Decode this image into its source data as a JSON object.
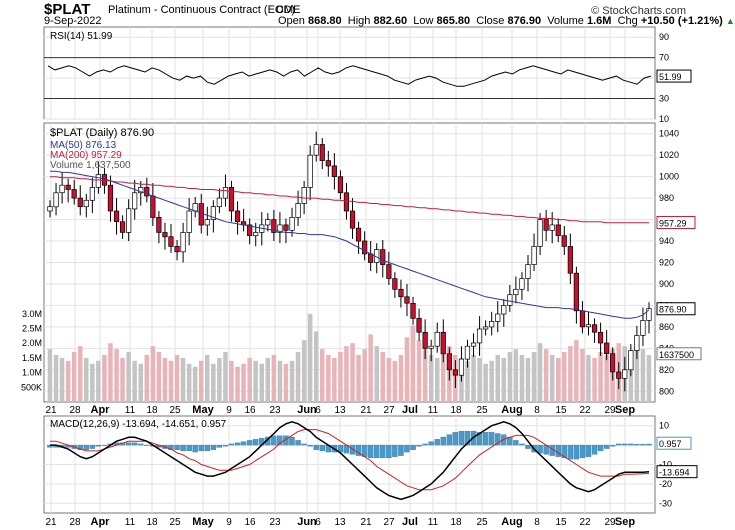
{
  "header": {
    "symbol": "$PLAT",
    "name": "Platinum - Continuous Contract (EOD)",
    "exchange": "CME",
    "date": "9-Sep-2022",
    "open_label": "Open",
    "open": "868.80",
    "high_label": "High",
    "high": "882.60",
    "low_label": "Low",
    "low": "865.80",
    "close_label": "Close",
    "close": "876.90",
    "volume_label": "Volume",
    "volume": "1.6M",
    "chg_label": "Chg",
    "chg": "+10.50 (+1.21%)",
    "chg_icon": "up-triangle-icon",
    "chg_color": "#1a8a1a",
    "copyright": "© StockCharts.com"
  },
  "chart_data": [
    {
      "type": "line",
      "panel": "rsi",
      "legend": "RSI(14) 51.99",
      "ylim": [
        10,
        100
      ],
      "y_ticks": [
        "90",
        "70",
        "50",
        "30",
        "10"
      ],
      "levels": [
        70,
        30
      ],
      "last_value": "51.99",
      "values": [
        62,
        58,
        60,
        62,
        60,
        56,
        52,
        56,
        58,
        56,
        60,
        62,
        60,
        58,
        56,
        60,
        58,
        54,
        50,
        48,
        52,
        50,
        52,
        46,
        44,
        48,
        52,
        54,
        56,
        52,
        54,
        56,
        58,
        56,
        52,
        56,
        58,
        52,
        56,
        60,
        56,
        54,
        56,
        60,
        62,
        60,
        58,
        56,
        54,
        52,
        48,
        46,
        44,
        48,
        50,
        52,
        50,
        46,
        44,
        42,
        42,
        44,
        46,
        48,
        52,
        54,
        56,
        54,
        58,
        60,
        62,
        60,
        58,
        56,
        54,
        58,
        56,
        54,
        52,
        50,
        48,
        50,
        52,
        48,
        46,
        44,
        50,
        52
      ]
    },
    {
      "type": "candlestick",
      "panel": "price",
      "legend": "$PLAT (Daily) 876.90",
      "ylim": [
        790,
        1050
      ],
      "y_ticks": [
        "1040",
        "1020",
        "1000",
        "980",
        "960",
        "940",
        "920",
        "900",
        "880",
        "860",
        "840",
        "820",
        "800"
      ],
      "volume_ticks": [
        "3.0M",
        "2.5M",
        "2.0M",
        "1.5M",
        "1.0M",
        "500K"
      ],
      "x_tick_labels": [
        "21",
        "28",
        "Apr",
        "11",
        "18",
        "25",
        "May",
        "9",
        "16",
        "23",
        "Jun",
        "6",
        "13",
        "21",
        "27",
        "Jul",
        "11",
        "18",
        "25",
        "Aug",
        "8",
        "15",
        "22",
        "29",
        "Sep"
      ],
      "close": [
        972,
        985,
        992,
        988,
        980,
        972,
        978,
        990,
        1002,
        992,
        968,
        958,
        948,
        970,
        985,
        990,
        982,
        962,
        948,
        944,
        935,
        930,
        948,
        968,
        975,
        955,
        960,
        972,
        980,
        990,
        968,
        958,
        955,
        945,
        948,
        955,
        960,
        948,
        955,
        950,
        962,
        975,
        990,
        1020,
        1030,
        1015,
        1010,
        1000,
        985,
        968,
        952,
        940,
        928,
        920,
        932,
        918,
        905,
        895,
        888,
        882,
        868,
        855,
        840,
        842,
        855,
        835,
        820,
        815,
        830,
        842,
        845,
        858,
        860,
        865,
        872,
        880,
        890,
        895,
        905,
        918,
        935,
        960,
        950,
        955,
        945,
        935,
        910,
        875,
        860,
        862,
        855,
        845,
        835,
        818,
        812,
        820,
        838,
        852,
        866,
        877
      ],
      "series": [
        {
          "name": "MA(50) 876.13",
          "color": "#2a3a9a",
          "values": [
            1005,
            1005,
            1004,
            1004,
            1003,
            1002,
            1001,
            1000,
            999,
            998,
            996,
            994,
            992,
            990,
            988,
            986,
            984,
            982,
            980,
            978,
            976,
            974,
            972,
            970,
            968,
            966,
            964,
            962,
            960,
            958,
            957,
            956,
            955,
            954,
            953,
            952,
            951,
            950,
            949,
            948,
            948,
            947,
            947,
            946,
            946,
            946,
            945,
            944,
            942,
            940,
            937,
            934,
            931,
            928,
            925,
            922,
            920,
            918,
            916,
            914,
            912,
            910,
            908,
            906,
            904,
            902,
            900,
            898,
            896,
            894,
            892,
            890,
            888,
            887,
            886,
            885,
            884,
            883,
            882,
            881,
            880,
            879,
            878,
            878,
            878,
            877,
            877,
            876,
            875,
            874,
            873,
            872,
            871,
            870,
            869,
            868,
            868,
            869,
            871,
            876
          ]
        },
        {
          "name": "MA(200) 957.29",
          "color": "#c0203a",
          "values": [
            1000,
            1000,
            999,
            999,
            999,
            998,
            998,
            997,
            997,
            996,
            996,
            995,
            995,
            994,
            994,
            993,
            993,
            992,
            992,
            991,
            991,
            990,
            990,
            989,
            989,
            988,
            988,
            988,
            987,
            987,
            986,
            986,
            985,
            985,
            984,
            984,
            983,
            983,
            982,
            982,
            981,
            981,
            980,
            980,
            980,
            979,
            979,
            978,
            978,
            977,
            977,
            976,
            976,
            975,
            975,
            974,
            974,
            973,
            973,
            972,
            972,
            971,
            971,
            970,
            970,
            969,
            969,
            968,
            968,
            967,
            967,
            966,
            966,
            965,
            965,
            964,
            964,
            963,
            963,
            962,
            962,
            961,
            961,
            961,
            960,
            960,
            959,
            959,
            958,
            958,
            958,
            958,
            957,
            957,
            957,
            957,
            957,
            957,
            957,
            957
          ]
        },
        {
          "name": "Volume 1,637,500",
          "color": "#999999",
          "values": [
            1.8,
            1.6,
            1.5,
            1.4,
            1.7,
            1.9,
            1.5,
            1.3,
            1.4,
            1.6,
            2.0,
            1.8,
            1.5,
            1.7,
            1.4,
            1.3,
            1.6,
            1.9,
            1.7,
            1.5,
            1.4,
            1.6,
            1.5,
            1.3,
            1.2,
            1.4,
            1.6,
            1.3,
            1.5,
            1.7,
            1.4,
            1.2,
            1.3,
            1.5,
            1.4,
            1.3,
            1.5,
            1.6,
            1.4,
            1.3,
            1.4,
            1.7,
            2.1,
            3.0,
            2.4,
            1.8,
            1.6,
            1.5,
            1.7,
            1.9,
            2.0,
            1.6,
            1.8,
            2.3,
            1.9,
            1.7,
            1.5,
            1.4,
            1.6,
            2.2,
            2.6,
            2.1,
            1.8,
            1.6,
            1.5,
            1.7,
            1.9,
            1.6,
            1.5,
            1.4,
            1.6,
            1.5,
            1.3,
            1.4,
            1.6,
            1.5,
            1.7,
            1.8,
            1.6,
            1.5,
            1.7,
            2.0,
            1.8,
            1.6,
            1.5,
            1.7,
            1.9,
            2.1,
            1.8,
            1.6,
            1.5,
            1.7,
            1.6,
            1.8,
            2.0,
            1.9,
            1.7,
            2.1,
            1.8,
            1.6
          ]
        }
      ],
      "last_value_labels": [
        "957.29",
        "876.90",
        "1637500"
      ]
    },
    {
      "type": "line",
      "panel": "macd",
      "legend": "MACD(12,26,9) -13.694, -14.651, 0.957",
      "ylim": [
        -35,
        15
      ],
      "y_ticks": [
        "10",
        "0",
        "-10",
        "-20",
        "-30"
      ],
      "last_value_labels": [
        "0.957",
        "-13.694"
      ],
      "series": [
        {
          "name": "MACD",
          "color": "#000000",
          "values": [
            0,
            0,
            -1,
            -2,
            -4,
            -6,
            -7,
            -6,
            -4,
            -2,
            0,
            2,
            3,
            4,
            4,
            3,
            2,
            0,
            -2,
            -4,
            -6,
            -8,
            -10,
            -12,
            -14,
            -15,
            -16,
            -16,
            -15,
            -14,
            -12,
            -10,
            -8,
            -6,
            -3,
            0,
            3,
            6,
            9,
            11,
            12,
            11,
            9,
            7,
            4,
            2,
            0,
            -2,
            -4,
            -7,
            -10,
            -13,
            -16,
            -19,
            -22,
            -24,
            -26,
            -27,
            -28,
            -27,
            -26,
            -24,
            -22,
            -20,
            -17,
            -14,
            -10,
            -6,
            -2,
            1,
            4,
            6,
            8,
            10,
            11,
            12,
            11,
            9,
            6,
            2,
            -2,
            -5,
            -8,
            -11,
            -14,
            -17,
            -20,
            -22,
            -23,
            -24,
            -23,
            -21,
            -19,
            -17,
            -15,
            -14,
            -14,
            -14,
            -14,
            -13.7
          ]
        },
        {
          "name": "Signal",
          "color": "#d02020",
          "values": [
            2,
            2,
            1,
            0,
            -1,
            -2,
            -3,
            -3,
            -3,
            -2,
            -1,
            0,
            1,
            2,
            2,
            2,
            2,
            1,
            0,
            -1,
            -2,
            -4,
            -5,
            -7,
            -8,
            -10,
            -11,
            -12,
            -13,
            -13,
            -13,
            -12,
            -11,
            -10,
            -8,
            -6,
            -4,
            -2,
            1,
            3,
            5,
            7,
            8,
            8,
            8,
            7,
            6,
            4,
            2,
            0,
            -2,
            -4,
            -6,
            -8,
            -11,
            -13,
            -15,
            -17,
            -19,
            -21,
            -22,
            -23,
            -23,
            -23,
            -22,
            -21,
            -19,
            -17,
            -14,
            -11,
            -8,
            -5,
            -3,
            -1,
            1,
            3,
            4,
            5,
            5,
            5,
            4,
            2,
            0,
            -2,
            -4,
            -6,
            -8,
            -10,
            -12,
            -14,
            -15,
            -16,
            -16,
            -16,
            -16,
            -15,
            -15,
            -14.9,
            -14.8,
            -14.651
          ]
        }
      ]
    }
  ]
}
